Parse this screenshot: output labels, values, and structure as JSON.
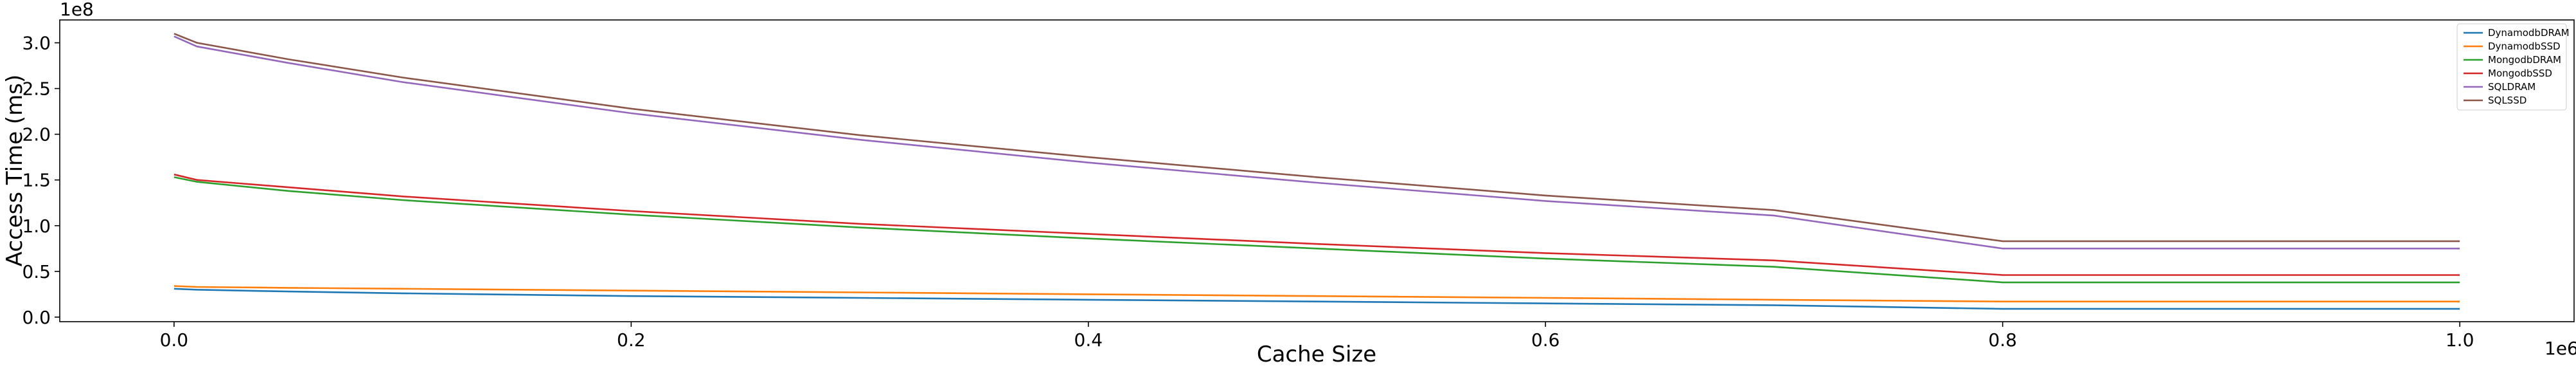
{
  "chart_data": {
    "type": "line",
    "title": "",
    "xlabel": "Cache Size",
    "ylabel": "Access Time (ms)",
    "x_offset_label": "1e6",
    "y_offset_label": "1e8",
    "xlim": [
      -0.05,
      1.05
    ],
    "ylim": [
      -0.05,
      3.25
    ],
    "x_ticks": [
      0.0,
      0.2,
      0.4,
      0.6,
      0.8,
      1.0
    ],
    "x_tick_labels": [
      "0.0",
      "0.2",
      "0.4",
      "0.6",
      "0.8",
      "1.0"
    ],
    "y_ticks": [
      0.0,
      0.5,
      1.0,
      1.5,
      2.0,
      2.5,
      3.0
    ],
    "y_tick_labels": [
      "0.0",
      "0.5",
      "1.0",
      "1.5",
      "2.0",
      "2.5",
      "3.0"
    ],
    "grid": false,
    "legend_position": "top-right",
    "x": [
      0.0,
      0.01,
      0.05,
      0.1,
      0.2,
      0.3,
      0.4,
      0.5,
      0.6,
      0.7,
      0.8,
      0.9,
      1.0
    ],
    "series": [
      {
        "name": "DynamodbDRAM",
        "color": "#1f77b4",
        "values": [
          0.31,
          0.3,
          0.28,
          0.26,
          0.23,
          0.21,
          0.19,
          0.17,
          0.15,
          0.13,
          0.09,
          0.09,
          0.09
        ]
      },
      {
        "name": "DynamodbSSD",
        "color": "#ff7f0e",
        "values": [
          0.34,
          0.33,
          0.32,
          0.31,
          0.29,
          0.27,
          0.25,
          0.23,
          0.21,
          0.19,
          0.17,
          0.17,
          0.17
        ]
      },
      {
        "name": "MongodbDRAM",
        "color": "#2ca02c",
        "values": [
          1.53,
          1.48,
          1.38,
          1.28,
          1.12,
          0.98,
          0.86,
          0.75,
          0.64,
          0.55,
          0.38,
          0.38,
          0.38
        ]
      },
      {
        "name": "MongodbSSD",
        "color": "#d62728",
        "values": [
          1.56,
          1.5,
          1.42,
          1.32,
          1.16,
          1.02,
          0.91,
          0.8,
          0.7,
          0.62,
          0.46,
          0.46,
          0.46
        ]
      },
      {
        "name": "SQLDRAM",
        "color": "#9467bd",
        "values": [
          3.07,
          2.96,
          2.78,
          2.57,
          2.23,
          1.94,
          1.69,
          1.47,
          1.27,
          1.11,
          0.75,
          0.75,
          0.75
        ]
      },
      {
        "name": "SQLSSD",
        "color": "#8c564b",
        "values": [
          3.1,
          3.0,
          2.82,
          2.62,
          2.28,
          1.99,
          1.75,
          1.53,
          1.33,
          1.17,
          0.83,
          0.83,
          0.83
        ]
      }
    ]
  }
}
